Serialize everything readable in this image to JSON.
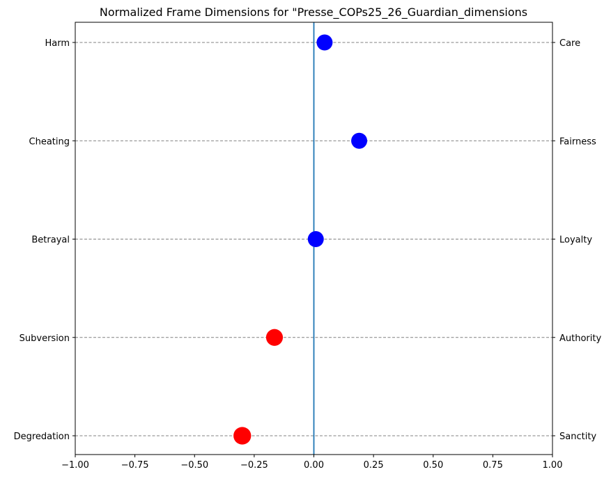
{
  "chart_data": {
    "type": "scatter",
    "title": "Normalized Frame Dimensions for \"Presse_COPs25_26_Guardian_dimensions",
    "xlabel": "",
    "ylabel": "",
    "xlim": [
      -1.0,
      1.0
    ],
    "xticks": [
      -1.0,
      -0.75,
      -0.5,
      -0.25,
      0.0,
      0.25,
      0.5,
      0.75,
      1.0
    ],
    "xtick_labels": [
      "−1.00",
      "−0.75",
      "−0.50",
      "−0.25",
      "0.00",
      "0.25",
      "0.50",
      "0.75",
      "1.00"
    ],
    "left_labels": [
      "Harm",
      "Cheating",
      "Betrayal",
      "Subversion",
      "Degredation"
    ],
    "right_labels": [
      "Care",
      "Fairness",
      "Loyalty",
      "Authority",
      "Sanctity"
    ],
    "points": [
      {
        "left": "Harm",
        "right": "Care",
        "value": 0.045,
        "color": "#0000ff",
        "size": 1.0
      },
      {
        "left": "Cheating",
        "right": "Fairness",
        "value": 0.19,
        "color": "#0000ff",
        "size": 1.0
      },
      {
        "left": "Betrayal",
        "right": "Loyalty",
        "value": 0.008,
        "color": "#0000ff",
        "size": 1.0
      },
      {
        "left": "Subversion",
        "right": "Authority",
        "value": -0.165,
        "color": "#ff0000",
        "size": 1.05
      },
      {
        "left": "Degredation",
        "right": "Sanctity",
        "value": -0.3,
        "color": "#ff0000",
        "size": 1.1
      }
    ],
    "zero_line_color": "#1f77b4",
    "grid": "horizontal dashed",
    "legend": "none"
  }
}
